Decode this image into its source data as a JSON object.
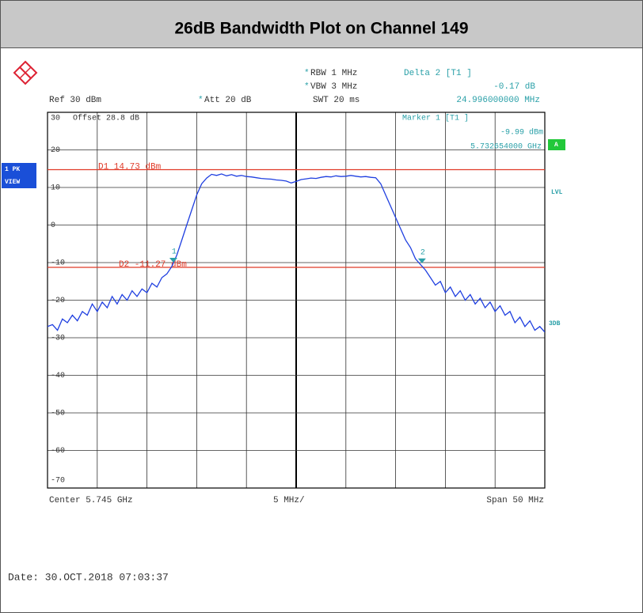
{
  "chart_data": {
    "type": "line",
    "title": "26dB Bandwidth Plot on Channel 149",
    "xlim": [
      5.72,
      5.77
    ],
    "ylim": [
      -70,
      30
    ],
    "yticks": [
      -70,
      -60,
      -50,
      -40,
      -30,
      -20,
      -10,
      0,
      10,
      20,
      30
    ],
    "grid": true,
    "x": [
      5.72,
      5.7205,
      5.721,
      5.7215,
      5.722,
      5.7225,
      5.723,
      5.7235,
      5.724,
      5.7245,
      5.725,
      5.7255,
      5.726,
      5.7265,
      5.727,
      5.7275,
      5.728,
      5.7285,
      5.729,
      5.7295,
      5.73,
      5.7305,
      5.731,
      5.7315,
      5.732,
      5.7325,
      5.733,
      5.7335,
      5.734,
      5.7345,
      5.735,
      5.7355,
      5.736,
      5.7365,
      5.737,
      5.7375,
      5.738,
      5.7385,
      5.739,
      5.7395,
      5.74,
      5.7405,
      5.741,
      5.7415,
      5.742,
      5.7425,
      5.743,
      5.7435,
      5.744,
      5.7445,
      5.745,
      5.7455,
      5.746,
      5.7465,
      5.747,
      5.7475,
      5.748,
      5.7485,
      5.749,
      5.7495,
      5.75,
      5.7505,
      5.751,
      5.7515,
      5.752,
      5.7525,
      5.753,
      5.7535,
      5.754,
      5.7545,
      5.755,
      5.7555,
      5.756,
      5.7565,
      5.757,
      5.7575,
      5.758,
      5.7585,
      5.759,
      5.7595,
      5.76,
      5.7605,
      5.761,
      5.7615,
      5.762,
      5.7625,
      5.763,
      5.7635,
      5.764,
      5.7645,
      5.765,
      5.7655,
      5.766,
      5.7665,
      5.767,
      5.7675,
      5.768,
      5.7685,
      5.769,
      5.7695,
      5.77
    ],
    "series": [
      {
        "color": "#1f3fe0",
        "values": [
          -27,
          -26.5,
          -28,
          -25,
          -26,
          -24,
          -25.5,
          -23,
          -24,
          -21,
          -23,
          -20.5,
          -22,
          -19,
          -21,
          -18.5,
          -20,
          -17.5,
          -19,
          -17,
          -18,
          -15.5,
          -16.5,
          -14,
          -13,
          -11,
          -8,
          -4,
          0,
          4,
          8,
          11,
          12.5,
          13.5,
          13.2,
          13.6,
          13.1,
          13.4,
          13.0,
          13.2,
          12.9,
          12.8,
          12.6,
          12.4,
          12.3,
          12.2,
          12.0,
          11.9,
          11.7,
          11.2,
          11.6,
          12.1,
          12.3,
          12.5,
          12.4,
          12.7,
          12.9,
          12.8,
          13.1,
          12.9,
          13.0,
          13.2,
          13.0,
          12.8,
          12.9,
          12.7,
          12.6,
          11,
          8,
          5,
          2,
          -1,
          -4,
          -6,
          -9,
          -10.5,
          -12,
          -14,
          -16,
          -15,
          -18,
          -16.5,
          -19,
          -17.5,
          -20,
          -18.5,
          -21,
          -19.5,
          -22,
          -20.5,
          -23,
          -21.5,
          -24,
          -23,
          -26,
          -24.5,
          -27,
          -25.5,
          -28,
          -27,
          -28.5
        ]
      }
    ],
    "ref_lines": [
      {
        "value": 14.73,
        "label": "D1 14.73 dBm",
        "color": "#e03a28"
      },
      {
        "value": -11.27,
        "label": "D2 -11.27 dBm",
        "color": "#e03a28"
      }
    ],
    "markers": [
      {
        "label": "1",
        "x": 5.732654,
        "y": -9.99,
        "color": "#2aa0a8"
      },
      {
        "label": "2",
        "x": 5.75765,
        "y": -10.16,
        "color": "#2aa0a8"
      }
    ],
    "info": {
      "rbw": "RBW 1 MHz",
      "vbw": "VBW 3 MHz",
      "swt": "SWT 20 ms",
      "ref": "Ref 30 dBm",
      "att": "Att 20 dB",
      "offset": "Offset 28.8 dB",
      "delta_title": "Delta 2 [T1 ]",
      "delta_level": "-0.17 dB",
      "delta_freq": "24.996000000 MHz",
      "marker_title": "Marker 1 [T1 ]",
      "marker_level": "-9.99 dBm",
      "marker_freq": "5.732654000 GHz",
      "trace_mode_1": "1 PK",
      "trace_mode_2": "VIEW",
      "trace_a": "A",
      "lvl": "LVL",
      "db3": "3DB",
      "center": "Center 5.745 GHz",
      "div": "5 MHz/",
      "span": "Span 50 MHz",
      "date": "Date: 30.OCT.2018  07:03:37"
    }
  }
}
